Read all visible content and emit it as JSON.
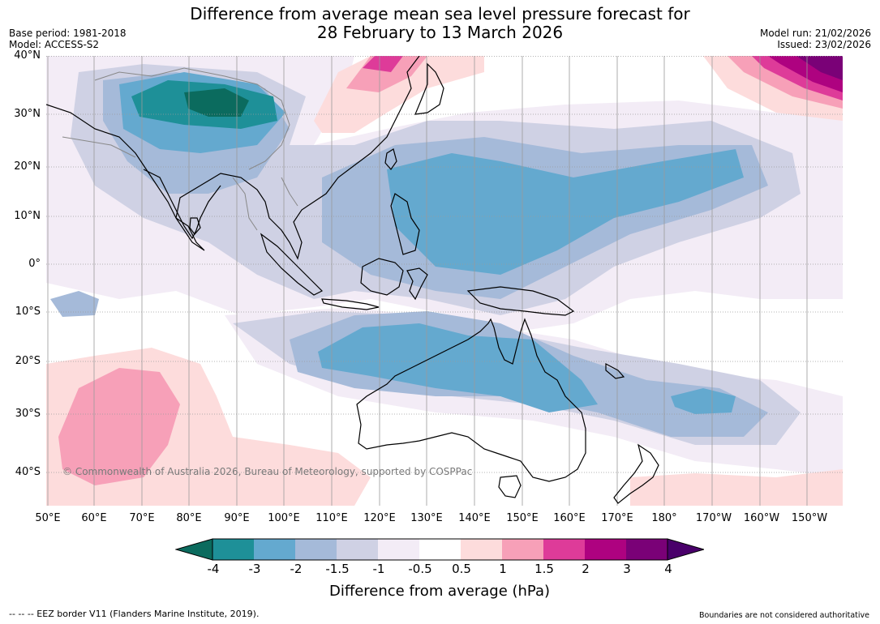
{
  "title": {
    "line1": "Difference from average mean sea level pressure forecast for",
    "line2": "28 February to 13 March 2026"
  },
  "meta": {
    "base_period": "Base period: 1981-2018",
    "model": "Model: ACCESS-S2",
    "model_run": "Model run: 21/02/2026",
    "issued": "Issued: 23/02/2026"
  },
  "map": {
    "lat_labels": [
      "40°N",
      "30°N",
      "20°N",
      "10°N",
      "0°",
      "10°S",
      "20°S",
      "30°S",
      "40°S"
    ],
    "lon_labels": [
      "50°E",
      "60°E",
      "70°E",
      "80°E",
      "90°E",
      "100°E",
      "110°E",
      "120°E",
      "130°E",
      "140°E",
      "150°E",
      "160°E",
      "170°E",
      "180°",
      "170°W",
      "160°W",
      "150°W"
    ],
    "copyright": "© Commonwealth of Australia 2026, Bureau of Meteorology, supported by COSPPac",
    "gridlines": true
  },
  "colorbar": {
    "label": "Difference from average (hPa)",
    "ticks": [
      "-4",
      "-3",
      "-2",
      "-1.5",
      "-1",
      "-0.5",
      "0.5",
      "1",
      "1.5",
      "2",
      "3",
      "4"
    ],
    "colors": [
      "#0b6b5e",
      "#1e9098",
      "#64a9cf",
      "#a5bad9",
      "#cfd1e4",
      "#f3ecf6",
      "#ffffff",
      "#fddcdc",
      "#f7a0b8",
      "#de3b99",
      "#ae0280",
      "#7a0177",
      "#49006a"
    ]
  },
  "footer": {
    "eez": "--  --  -- EEZ border V11 (Flanders Marine Institute, 2019).",
    "boundaries": "Boundaries are not considered authoritative"
  }
}
